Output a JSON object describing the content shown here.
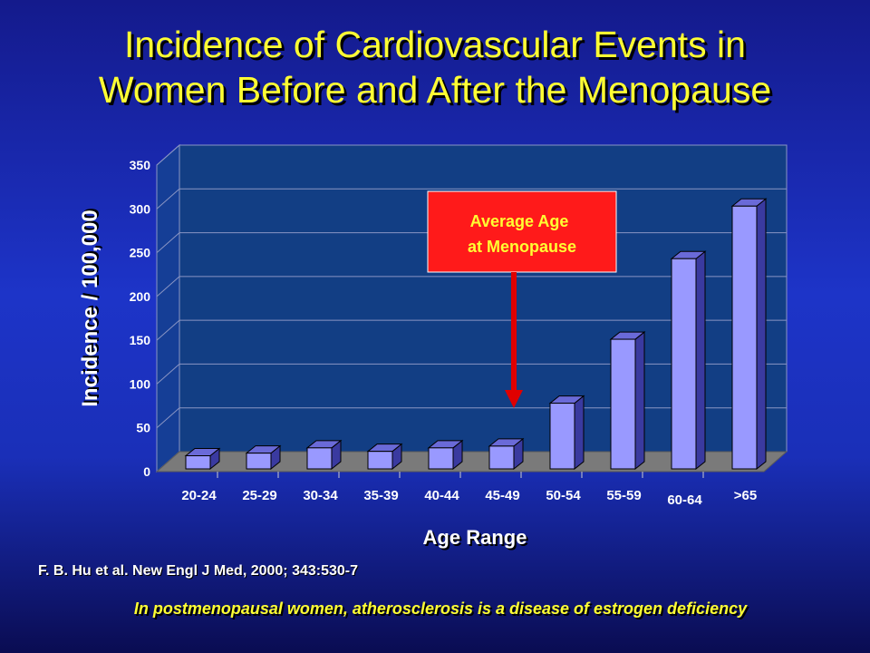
{
  "slide": {
    "title_line1": "Incidence of Cardiovascular Events in",
    "title_line2": "Women Before and After the Menopause",
    "citation": "F. B. Hu et al. New Engl J Med, 2000; 343:530-7",
    "conclusion": "In postmenopausal women, atherosclerosis is a disease of estrogen deficiency"
  },
  "callout": {
    "line1": "Average Age",
    "line2": "at Menopause"
  },
  "colors": {
    "title": "#ffff33",
    "plot_back": "#123e84",
    "bar_front": "#9999ff",
    "callout_fill": "#ff1a1a",
    "arrow": "#e00000"
  },
  "chart_data": {
    "type": "bar",
    "title": "Incidence of Cardiovascular Events in Women Before and After the Menopause",
    "xlabel": "Age Range",
    "ylabel": "Incidence / 100,000",
    "categories": [
      "20-24",
      "25-29",
      "30-34",
      "35-39",
      "40-44",
      "45-49",
      "50-54",
      "55-59",
      "60-64",
      ">65"
    ],
    "values": [
      15,
      18,
      24,
      20,
      24,
      26,
      75,
      148,
      240,
      300
    ],
    "ylim": [
      0,
      350
    ],
    "yticks": [
      "0",
      "50",
      "100",
      "150",
      "200",
      "250",
      "300",
      "350"
    ],
    "grid": true,
    "legend": "none"
  }
}
